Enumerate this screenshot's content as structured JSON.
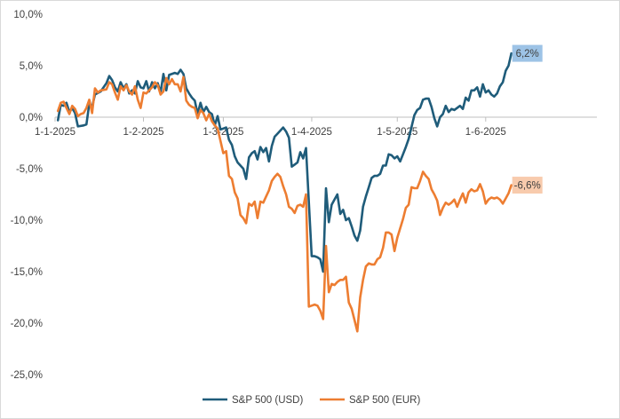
{
  "chart_data": {
    "type": "line",
    "title": "",
    "xlabel": "",
    "ylabel": "",
    "ylim": [
      -25,
      10
    ],
    "y_ticks": [
      "10,0%",
      "5,0%",
      "0,0%",
      "-5,0%",
      "-10,0%",
      "-15,0%",
      "-20,0%",
      "-25,0%"
    ],
    "y_tick_values": [
      10,
      5,
      0,
      -5,
      -10,
      -15,
      -20,
      -25
    ],
    "x_ticks": [
      "1-1-2025",
      "1-2-2025",
      "1-3-2025",
      "1-4-2025",
      "1-5-2025",
      "1-6-2025"
    ],
    "x_tick_days": [
      0,
      31,
      59,
      90,
      120,
      151
    ],
    "xlim_days": [
      0,
      190
    ],
    "grid": false,
    "legend_position": "bottom",
    "series": [
      {
        "name": "S&P 500 (USD)",
        "color": "#1f5c7a",
        "end_label": "6,2%",
        "end_label_bg": "#9dc3e6",
        "points": [
          [
            1,
            -0.3
          ],
          [
            2,
            1.2
          ],
          [
            3,
            1.1
          ],
          [
            4,
            1.4
          ],
          [
            5,
            0.5
          ],
          [
            6,
            0.9
          ],
          [
            7,
            0.4
          ],
          [
            8,
            -0.9
          ],
          [
            10,
            -0.8
          ],
          [
            11,
            -0.7
          ],
          [
            12,
            1.3
          ],
          [
            13,
            1.0
          ],
          [
            14,
            2.2
          ],
          [
            16,
            2.5
          ],
          [
            18,
            3.3
          ],
          [
            19,
            4.0
          ],
          [
            20,
            3.6
          ],
          [
            21,
            2.9
          ],
          [
            22,
            2.5
          ],
          [
            23,
            3.4
          ],
          [
            24,
            2.8
          ],
          [
            25,
            3.2
          ],
          [
            26,
            2.3
          ],
          [
            27,
            2.6
          ],
          [
            28,
            2.3
          ],
          [
            29,
            3.5
          ],
          [
            30,
            2.9
          ],
          [
            31,
            2.8
          ],
          [
            32,
            3.5
          ],
          [
            33,
            2.5
          ],
          [
            34,
            3.4
          ],
          [
            35,
            2.8
          ],
          [
            36,
            3.3
          ],
          [
            37,
            2.4
          ],
          [
            38,
            4.2
          ],
          [
            39,
            2.6
          ],
          [
            40,
            4.1
          ],
          [
            42,
            4.3
          ],
          [
            43,
            4.2
          ],
          [
            44,
            4.6
          ],
          [
            45,
            4.2
          ],
          [
            46,
            2.8
          ],
          [
            47,
            2.3
          ],
          [
            48,
            1.9
          ],
          [
            49,
            1.6
          ],
          [
            50,
            0.3
          ],
          [
            51,
            1.4
          ],
          [
            52,
            0.5
          ],
          [
            53,
            1.0
          ],
          [
            54,
            0.5
          ],
          [
            55,
            0.3
          ],
          [
            56,
            -0.8
          ],
          [
            57,
            0.1
          ],
          [
            58,
            -1.2
          ],
          [
            59,
            -1.1
          ],
          [
            60,
            -1.0
          ],
          [
            61,
            -2.2
          ],
          [
            62,
            -2.7
          ],
          [
            63,
            -3.8
          ],
          [
            64,
            -4.4
          ],
          [
            65,
            -4.7
          ],
          [
            66,
            -5.0
          ],
          [
            67,
            -6.0
          ],
          [
            68,
            -3.9
          ],
          [
            69,
            -3.5
          ],
          [
            70,
            -3.3
          ],
          [
            71,
            -4.1
          ],
          [
            72,
            -2.9
          ],
          [
            73,
            -3.4
          ],
          [
            74,
            -3.0
          ],
          [
            75,
            -4.3
          ],
          [
            76,
            -2.8
          ],
          [
            77,
            -1.9
          ],
          [
            78,
            -1.6
          ],
          [
            79,
            -1.3
          ],
          [
            80,
            -1.0
          ],
          [
            81,
            -1.4
          ],
          [
            82,
            -2.0
          ],
          [
            83,
            -4.8
          ],
          [
            84,
            -4.6
          ],
          [
            85,
            -4.4
          ],
          [
            86,
            -3.4
          ],
          [
            87,
            -4.0
          ],
          [
            88,
            -3.0
          ],
          [
            90,
            -13.5
          ],
          [
            91,
            -13.5
          ],
          [
            92,
            -13.6
          ],
          [
            93,
            -13.8
          ],
          [
            94,
            -15.0
          ],
          [
            95,
            -6.9
          ],
          [
            96,
            -10.2
          ],
          [
            97,
            -8.5
          ],
          [
            98,
            -8.0
          ],
          [
            99,
            -7.5
          ],
          [
            100,
            -9.4
          ],
          [
            101,
            -9.0
          ],
          [
            102,
            -10.0
          ],
          [
            103,
            -9.8
          ],
          [
            104,
            -10.6
          ],
          [
            105,
            -11.5
          ],
          [
            106,
            -12.0
          ],
          [
            107,
            -11.0
          ],
          [
            108,
            -8.7
          ],
          [
            109,
            -7.7
          ],
          [
            110,
            -6.8
          ],
          [
            111,
            -5.9
          ],
          [
            112,
            -5.7
          ],
          [
            113,
            -5.7
          ],
          [
            114,
            -5.5
          ],
          [
            115,
            -4.7
          ],
          [
            116,
            -4.7
          ],
          [
            117,
            -3.6
          ],
          [
            118,
            -3.7
          ],
          [
            119,
            -4.0
          ],
          [
            120,
            -3.8
          ],
          [
            121,
            -4.3
          ],
          [
            122,
            -3.6
          ],
          [
            123,
            -2.9
          ],
          [
            124,
            -2.1
          ],
          [
            126,
            0.2
          ],
          [
            127,
            0.7
          ],
          [
            128,
            0.9
          ],
          [
            129,
            1.7
          ],
          [
            130,
            1.8
          ],
          [
            131,
            1.8
          ],
          [
            132,
            1.0
          ],
          [
            133,
            -0.1
          ],
          [
            134,
            -0.9
          ],
          [
            135,
            0.0
          ],
          [
            136,
            0.3
          ],
          [
            137,
            1.1
          ],
          [
            138,
            0.5
          ],
          [
            139,
            0.8
          ],
          [
            140,
            0.7
          ],
          [
            141,
            0.9
          ],
          [
            142,
            1.1
          ],
          [
            143,
            0.8
          ],
          [
            144,
            1.9
          ],
          [
            145,
            1.6
          ],
          [
            146,
            2.6
          ],
          [
            147,
            2.6
          ],
          [
            148,
            2.9
          ],
          [
            149,
            2.0
          ],
          [
            150,
            3.2
          ],
          [
            151,
            2.4
          ],
          [
            152,
            2.6
          ],
          [
            153,
            2.2
          ],
          [
            154,
            2.0
          ],
          [
            155,
            2.3
          ],
          [
            156,
            3.0
          ],
          [
            157,
            3.4
          ],
          [
            158,
            4.5
          ],
          [
            159,
            5.0
          ],
          [
            160,
            6.2
          ]
        ]
      },
      {
        "name": "S&P 500 (EUR)",
        "color": "#ed7d31",
        "end_label": "-6,6%",
        "end_label_bg": "#f8cbad",
        "points": [
          [
            1,
            0.6
          ],
          [
            2,
            1.4
          ],
          [
            3,
            1.5
          ],
          [
            4,
            0.9
          ],
          [
            5,
            0.3
          ],
          [
            6,
            1.1
          ],
          [
            7,
            0.8
          ],
          [
            8,
            0.1
          ],
          [
            9,
            0.3
          ],
          [
            10,
            0.4
          ],
          [
            11,
            0.9
          ],
          [
            12,
            1.7
          ],
          [
            13,
            0.4
          ],
          [
            14,
            2.8
          ],
          [
            15,
            2.4
          ],
          [
            16,
            2.6
          ],
          [
            18,
            2.7
          ],
          [
            19,
            3.4
          ],
          [
            20,
            3.2
          ],
          [
            21,
            2.4
          ],
          [
            22,
            1.7
          ],
          [
            23,
            3.0
          ],
          [
            24,
            2.6
          ],
          [
            25,
            3.1
          ],
          [
            26,
            2.5
          ],
          [
            27,
            2.2
          ],
          [
            28,
            3.0
          ],
          [
            29,
            1.7
          ],
          [
            30,
            0.9
          ],
          [
            31,
            2.4
          ],
          [
            32,
            2.3
          ],
          [
            33,
            2.6
          ],
          [
            34,
            2.9
          ],
          [
            35,
            3.4
          ],
          [
            36,
            3.1
          ],
          [
            37,
            2.2
          ],
          [
            38,
            2.5
          ],
          [
            39,
            3.8
          ],
          [
            40,
            3.2
          ],
          [
            41,
            3.7
          ],
          [
            42,
            3.2
          ],
          [
            43,
            3.2
          ],
          [
            44,
            2.5
          ],
          [
            45,
            3.9
          ],
          [
            46,
            1.6
          ],
          [
            47,
            1.2
          ],
          [
            48,
            1.0
          ],
          [
            49,
            0.9
          ],
          [
            50,
            -0.1
          ],
          [
            51,
            0.7
          ],
          [
            52,
            0.4
          ],
          [
            53,
            -0.3
          ],
          [
            54,
            0.3
          ],
          [
            55,
            -0.4
          ],
          [
            56,
            -0.8
          ],
          [
            57,
            -1.1
          ],
          [
            58,
            -2.3
          ],
          [
            59,
            -3.5
          ],
          [
            60,
            -3.3
          ],
          [
            61,
            -5.7
          ],
          [
            62,
            -6.0
          ],
          [
            63,
            -7.3
          ],
          [
            64,
            -7.9
          ],
          [
            65,
            -9.5
          ],
          [
            66,
            -9.8
          ],
          [
            67,
            -10.3
          ],
          [
            68,
            -8.4
          ],
          [
            69,
            -8.6
          ],
          [
            70,
            -8.2
          ],
          [
            71,
            -9.8
          ],
          [
            72,
            -8.2
          ],
          [
            73,
            -8.3
          ],
          [
            74,
            -7.7
          ],
          [
            75,
            -7.1
          ],
          [
            76,
            -6.2
          ],
          [
            77,
            -5.8
          ],
          [
            78,
            -5.5
          ],
          [
            79,
            -5.8
          ],
          [
            80,
            -6.7
          ],
          [
            81,
            -7.5
          ],
          [
            82,
            -8.7
          ],
          [
            83,
            -8.9
          ],
          [
            84,
            -9.3
          ],
          [
            85,
            -8.6
          ],
          [
            86,
            -8.5
          ],
          [
            87,
            -8.7
          ],
          [
            88,
            -7.5
          ],
          [
            89,
            -18.4
          ],
          [
            90,
            -18.3
          ],
          [
            91,
            -18.2
          ],
          [
            92,
            -18.3
          ],
          [
            93,
            -18.8
          ],
          [
            94,
            -19.6
          ],
          [
            95,
            -12.5
          ],
          [
            96,
            -17.0
          ],
          [
            97,
            -16.2
          ],
          [
            98,
            -16.3
          ],
          [
            99,
            -16.0
          ],
          [
            100,
            -15.8
          ],
          [
            101,
            -15.8
          ],
          [
            102,
            -15.5
          ],
          [
            103,
            -18.0
          ],
          [
            104,
            -18.6
          ],
          [
            105,
            -19.7
          ],
          [
            106,
            -20.8
          ],
          [
            107,
            -17.5
          ],
          [
            108,
            -15.8
          ],
          [
            109,
            -14.5
          ],
          [
            110,
            -14.2
          ],
          [
            111,
            -14.3
          ],
          [
            112,
            -14.3
          ],
          [
            113,
            -13.8
          ],
          [
            114,
            -13.6
          ],
          [
            115,
            -12.7
          ],
          [
            116,
            -11.2
          ],
          [
            117,
            -11.2
          ],
          [
            118,
            -11.4
          ],
          [
            119,
            -13.0
          ],
          [
            120,
            -11.7
          ],
          [
            121,
            -10.8
          ],
          [
            122,
            -9.9
          ],
          [
            123,
            -8.8
          ],
          [
            124,
            -8.5
          ],
          [
            125,
            -6.8
          ],
          [
            126,
            -6.9
          ],
          [
            127,
            -6.9
          ],
          [
            128,
            -6.2
          ],
          [
            129,
            -5.3
          ],
          [
            130,
            -5.7
          ],
          [
            131,
            -6.0
          ],
          [
            132,
            -7.0
          ],
          [
            133,
            -7.5
          ],
          [
            134,
            -8.1
          ],
          [
            135,
            -9.5
          ],
          [
            136,
            -8.8
          ],
          [
            137,
            -8.3
          ],
          [
            138,
            -8.5
          ],
          [
            139,
            -8.3
          ],
          [
            140,
            -8.0
          ],
          [
            141,
            -8.7
          ],
          [
            142,
            -8.0
          ],
          [
            143,
            -7.4
          ],
          [
            144,
            -8.3
          ],
          [
            145,
            -7.3
          ],
          [
            146,
            -7.0
          ],
          [
            147,
            -7.2
          ],
          [
            148,
            -7.1
          ],
          [
            149,
            -6.5
          ],
          [
            150,
            -7.2
          ],
          [
            151,
            -8.4
          ],
          [
            152,
            -8.0
          ],
          [
            153,
            -7.8
          ],
          [
            154,
            -7.9
          ],
          [
            155,
            -7.8
          ],
          [
            156,
            -8.0
          ],
          [
            157,
            -8.4
          ],
          [
            158,
            -7.9
          ],
          [
            159,
            -7.4
          ],
          [
            160,
            -6.6
          ]
        ]
      }
    ]
  }
}
